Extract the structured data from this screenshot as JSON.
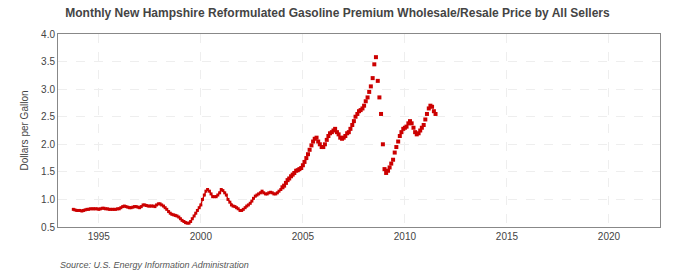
{
  "chart_data": {
    "type": "line",
    "title": "Monthly New Hampshire Reformulated Gasoline Premium Wholesale/Resale Price by All Sellers",
    "y_label": "Dollars per Gallon",
    "annotations": [
      "Source: U.S. Energy Information Administration"
    ],
    "xlim": [
      1993.0,
      2022.5
    ],
    "xticks": [
      1995,
      2000,
      2005,
      2010,
      2015,
      2020
    ],
    "ylim": [
      0.5,
      4.0
    ],
    "yticks": [
      0.5,
      {
        "value": 1.0,
        "label": "1.0"
      },
      1.5,
      {
        "value": 2.0,
        "label": "2.0"
      },
      2.5,
      {
        "value": 3.0,
        "label": "3.0"
      },
      3.5,
      {
        "value": 4.0,
        "label": "4.0"
      }
    ],
    "grid": true,
    "series": [
      {
        "type": "line",
        "color": "#cc0000",
        "marker": "square",
        "x": [
          1993.75,
          1993.83,
          1993.92,
          1994.0,
          1994.08,
          1994.17,
          1994.25,
          1994.33,
          1994.42,
          1994.5,
          1994.58,
          1994.67,
          1994.75,
          1994.83,
          1994.92,
          1995.0,
          1995.08,
          1995.17,
          1995.25,
          1995.33,
          1995.42,
          1995.5,
          1995.58,
          1995.67,
          1995.75,
          1995.83,
          1995.92,
          1996.0,
          1996.08,
          1996.17,
          1996.25,
          1996.33,
          1996.42,
          1996.5,
          1996.58,
          1996.67,
          1996.75,
          1996.83,
          1996.92,
          1997.0,
          1997.08,
          1997.17,
          1997.25,
          1997.33,
          1997.42,
          1997.5,
          1997.58,
          1997.67,
          1997.75,
          1997.83,
          1997.92,
          1998.0,
          1998.08,
          1998.17,
          1998.25,
          1998.33,
          1998.42,
          1998.5,
          1998.58,
          1998.67,
          1998.75,
          1998.83,
          1998.92,
          1999.0,
          1999.08,
          1999.17,
          1999.25,
          1999.33,
          1999.42,
          1999.5,
          1999.58,
          1999.67,
          1999.75,
          1999.83,
          1999.92,
          2000.0,
          2000.08,
          2000.17,
          2000.25,
          2000.33,
          2000.42,
          2000.5,
          2000.58,
          2000.67,
          2000.75,
          2000.83,
          2000.92,
          2001.0,
          2001.08,
          2001.17,
          2001.25,
          2001.33,
          2001.42,
          2001.5,
          2001.58,
          2001.67,
          2001.75,
          2001.83,
          2001.92,
          2002.0,
          2002.08,
          2002.17,
          2002.25,
          2002.33,
          2002.42,
          2002.5,
          2002.58,
          2002.67,
          2002.75,
          2002.83,
          2002.92,
          2003.0,
          2003.08,
          2003.17,
          2003.25,
          2003.33,
          2003.42,
          2003.5,
          2003.58,
          2003.67,
          2003.75,
          2003.83,
          2003.92
        ],
        "values": [
          0.82,
          0.81,
          0.8,
          0.8,
          0.8,
          0.79,
          0.8,
          0.81,
          0.82,
          0.82,
          0.83,
          0.83,
          0.83,
          0.83,
          0.83,
          0.82,
          0.83,
          0.84,
          0.84,
          0.83,
          0.83,
          0.82,
          0.82,
          0.82,
          0.82,
          0.82,
          0.83,
          0.83,
          0.85,
          0.87,
          0.88,
          0.87,
          0.86,
          0.85,
          0.85,
          0.86,
          0.87,
          0.87,
          0.86,
          0.85,
          0.87,
          0.9,
          0.9,
          0.89,
          0.88,
          0.88,
          0.88,
          0.88,
          0.87,
          0.9,
          0.92,
          0.92,
          0.9,
          0.88,
          0.85,
          0.82,
          0.78,
          0.75,
          0.73,
          0.72,
          0.71,
          0.7,
          0.68,
          0.65,
          0.62,
          0.6,
          0.58,
          0.57,
          0.57,
          0.6,
          0.65,
          0.7,
          0.75,
          0.8,
          0.85,
          0.9,
          1.0,
          1.08,
          1.15,
          1.18,
          1.15,
          1.1,
          1.05,
          1.05,
          1.05,
          1.08,
          1.12,
          1.18,
          1.16,
          1.12,
          1.08,
          1.0,
          0.95,
          0.9,
          0.88,
          0.87,
          0.85,
          0.83,
          0.8,
          0.8,
          0.82,
          0.85,
          0.88,
          0.9,
          0.93,
          0.97,
          1.02,
          1.06,
          1.08,
          1.1,
          1.12,
          1.15,
          1.12,
          1.1,
          1.1,
          1.12,
          1.13,
          1.12,
          1.1,
          1.1,
          1.12,
          1.15,
          1.18
        ]
      },
      {
        "type": "scatter",
        "color": "#cc0000",
        "marker": "square",
        "x": [
          2004.0,
          2004.08,
          2004.17,
          2004.25,
          2004.33,
          2004.42,
          2004.5,
          2004.58,
          2004.67,
          2004.75,
          2004.83,
          2004.92,
          2005.0,
          2005.08,
          2005.17,
          2005.25,
          2005.33,
          2005.42,
          2005.5,
          2005.58,
          2005.67,
          2005.75,
          2005.83,
          2005.92,
          2006.0,
          2006.08,
          2006.17,
          2006.25,
          2006.33,
          2006.42,
          2006.5,
          2006.58,
          2006.67,
          2006.75,
          2006.83,
          2006.92,
          2007.0,
          2007.08,
          2007.17,
          2007.25,
          2007.33,
          2007.42,
          2007.5,
          2007.58,
          2007.67,
          2007.75,
          2007.83,
          2007.92,
          2008.0,
          2008.08,
          2008.17,
          2008.25,
          2008.33,
          2008.42,
          2008.5,
          2008.58,
          2008.67,
          2008.75,
          2008.83,
          2008.92,
          2009.0,
          2009.08,
          2009.17,
          2009.25,
          2009.33,
          2009.42,
          2009.5,
          2009.58,
          2009.67,
          2009.75,
          2009.83,
          2009.92,
          2010.0,
          2010.08,
          2010.17,
          2010.25,
          2010.33,
          2010.42,
          2010.5,
          2010.58,
          2010.67,
          2010.75,
          2010.83,
          2010.92,
          2011.0,
          2011.08,
          2011.17,
          2011.25,
          2011.33,
          2011.42,
          2011.5
        ],
        "values": [
          1.22,
          1.25,
          1.3,
          1.35,
          1.38,
          1.42,
          1.45,
          1.48,
          1.52,
          1.53,
          1.55,
          1.57,
          1.62,
          1.68,
          1.75,
          1.82,
          1.9,
          1.98,
          2.05,
          2.1,
          2.12,
          2.05,
          2.0,
          1.95,
          1.95,
          2.0,
          2.08,
          2.15,
          2.2,
          2.22,
          2.25,
          2.28,
          2.22,
          2.18,
          2.12,
          2.1,
          2.12,
          2.15,
          2.2,
          2.22,
          2.28,
          2.35,
          2.42,
          2.5,
          2.55,
          2.6,
          2.62,
          2.65,
          2.7,
          2.78,
          2.85,
          2.95,
          3.05,
          3.2,
          3.45,
          3.58,
          3.15,
          2.85,
          2.55,
          2.0,
          1.55,
          1.48,
          1.52,
          1.58,
          1.65,
          1.72,
          1.85,
          1.95,
          2.05,
          2.15,
          2.22,
          2.28,
          2.3,
          2.32,
          2.38,
          2.42,
          2.38,
          2.3,
          2.22,
          2.18,
          2.2,
          2.25,
          2.3,
          2.35,
          2.45,
          2.55,
          2.65,
          2.7,
          2.68,
          2.6,
          2.55
        ]
      }
    ]
  }
}
